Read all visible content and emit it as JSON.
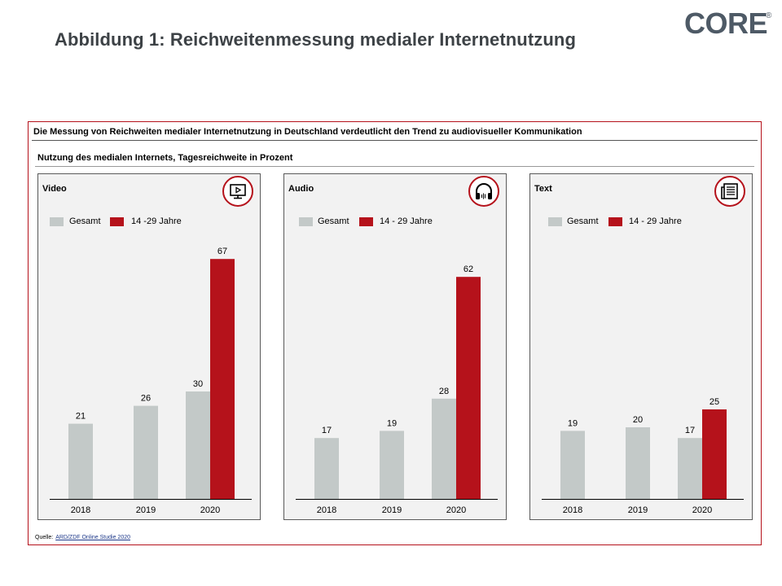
{
  "page": {
    "title": "Abbildung 1: Reichweitenmessung medialer Internetnutzung",
    "logo": "CORE",
    "logo_mark": "®"
  },
  "frame": {
    "headline": "Die Messung von Reichweiten medialer Internetnutzung in Deutschland verdeutlicht den Trend zu audiovisueller Kommunikation",
    "subheadline": "Nutzung des medialen Internets, Tagesreichweite in Prozent",
    "source_label": "Quelle:",
    "source_link": "ARD/ZDF Online Studie 2020"
  },
  "colors": {
    "gesamt": "#c3c9c8",
    "young": "#b5121b",
    "accent": "#b5121b"
  },
  "chart_data": [
    {
      "type": "bar",
      "title": "Video",
      "icon": "video-screen-icon",
      "categories": [
        "2018",
        "2019",
        "2020"
      ],
      "series": [
        {
          "name": "Gesamt",
          "values": [
            21,
            26,
            30
          ]
        },
        {
          "name": "14 -29 Jahre",
          "values": [
            null,
            null,
            67
          ]
        }
      ],
      "ylim": [
        0,
        100
      ],
      "legend": "top-left",
      "grid": false
    },
    {
      "type": "bar",
      "title": "Audio",
      "icon": "headphones-icon",
      "categories": [
        "2018",
        "2019",
        "2020"
      ],
      "series": [
        {
          "name": "Gesamt",
          "values": [
            17,
            19,
            28
          ]
        },
        {
          "name": "14 - 29 Jahre",
          "values": [
            null,
            null,
            62
          ]
        }
      ],
      "ylim": [
        0,
        100
      ],
      "legend": "top-left",
      "grid": false
    },
    {
      "type": "bar",
      "title": "Text",
      "icon": "newspaper-icon",
      "categories": [
        "2018",
        "2019",
        "2020"
      ],
      "series": [
        {
          "name": "Gesamt",
          "values": [
            19,
            20,
            17
          ]
        },
        {
          "name": "14 - 29 Jahre",
          "values": [
            null,
            null,
            25
          ]
        }
      ],
      "ylim": [
        0,
        100
      ],
      "legend": "top-left",
      "grid": false
    }
  ]
}
